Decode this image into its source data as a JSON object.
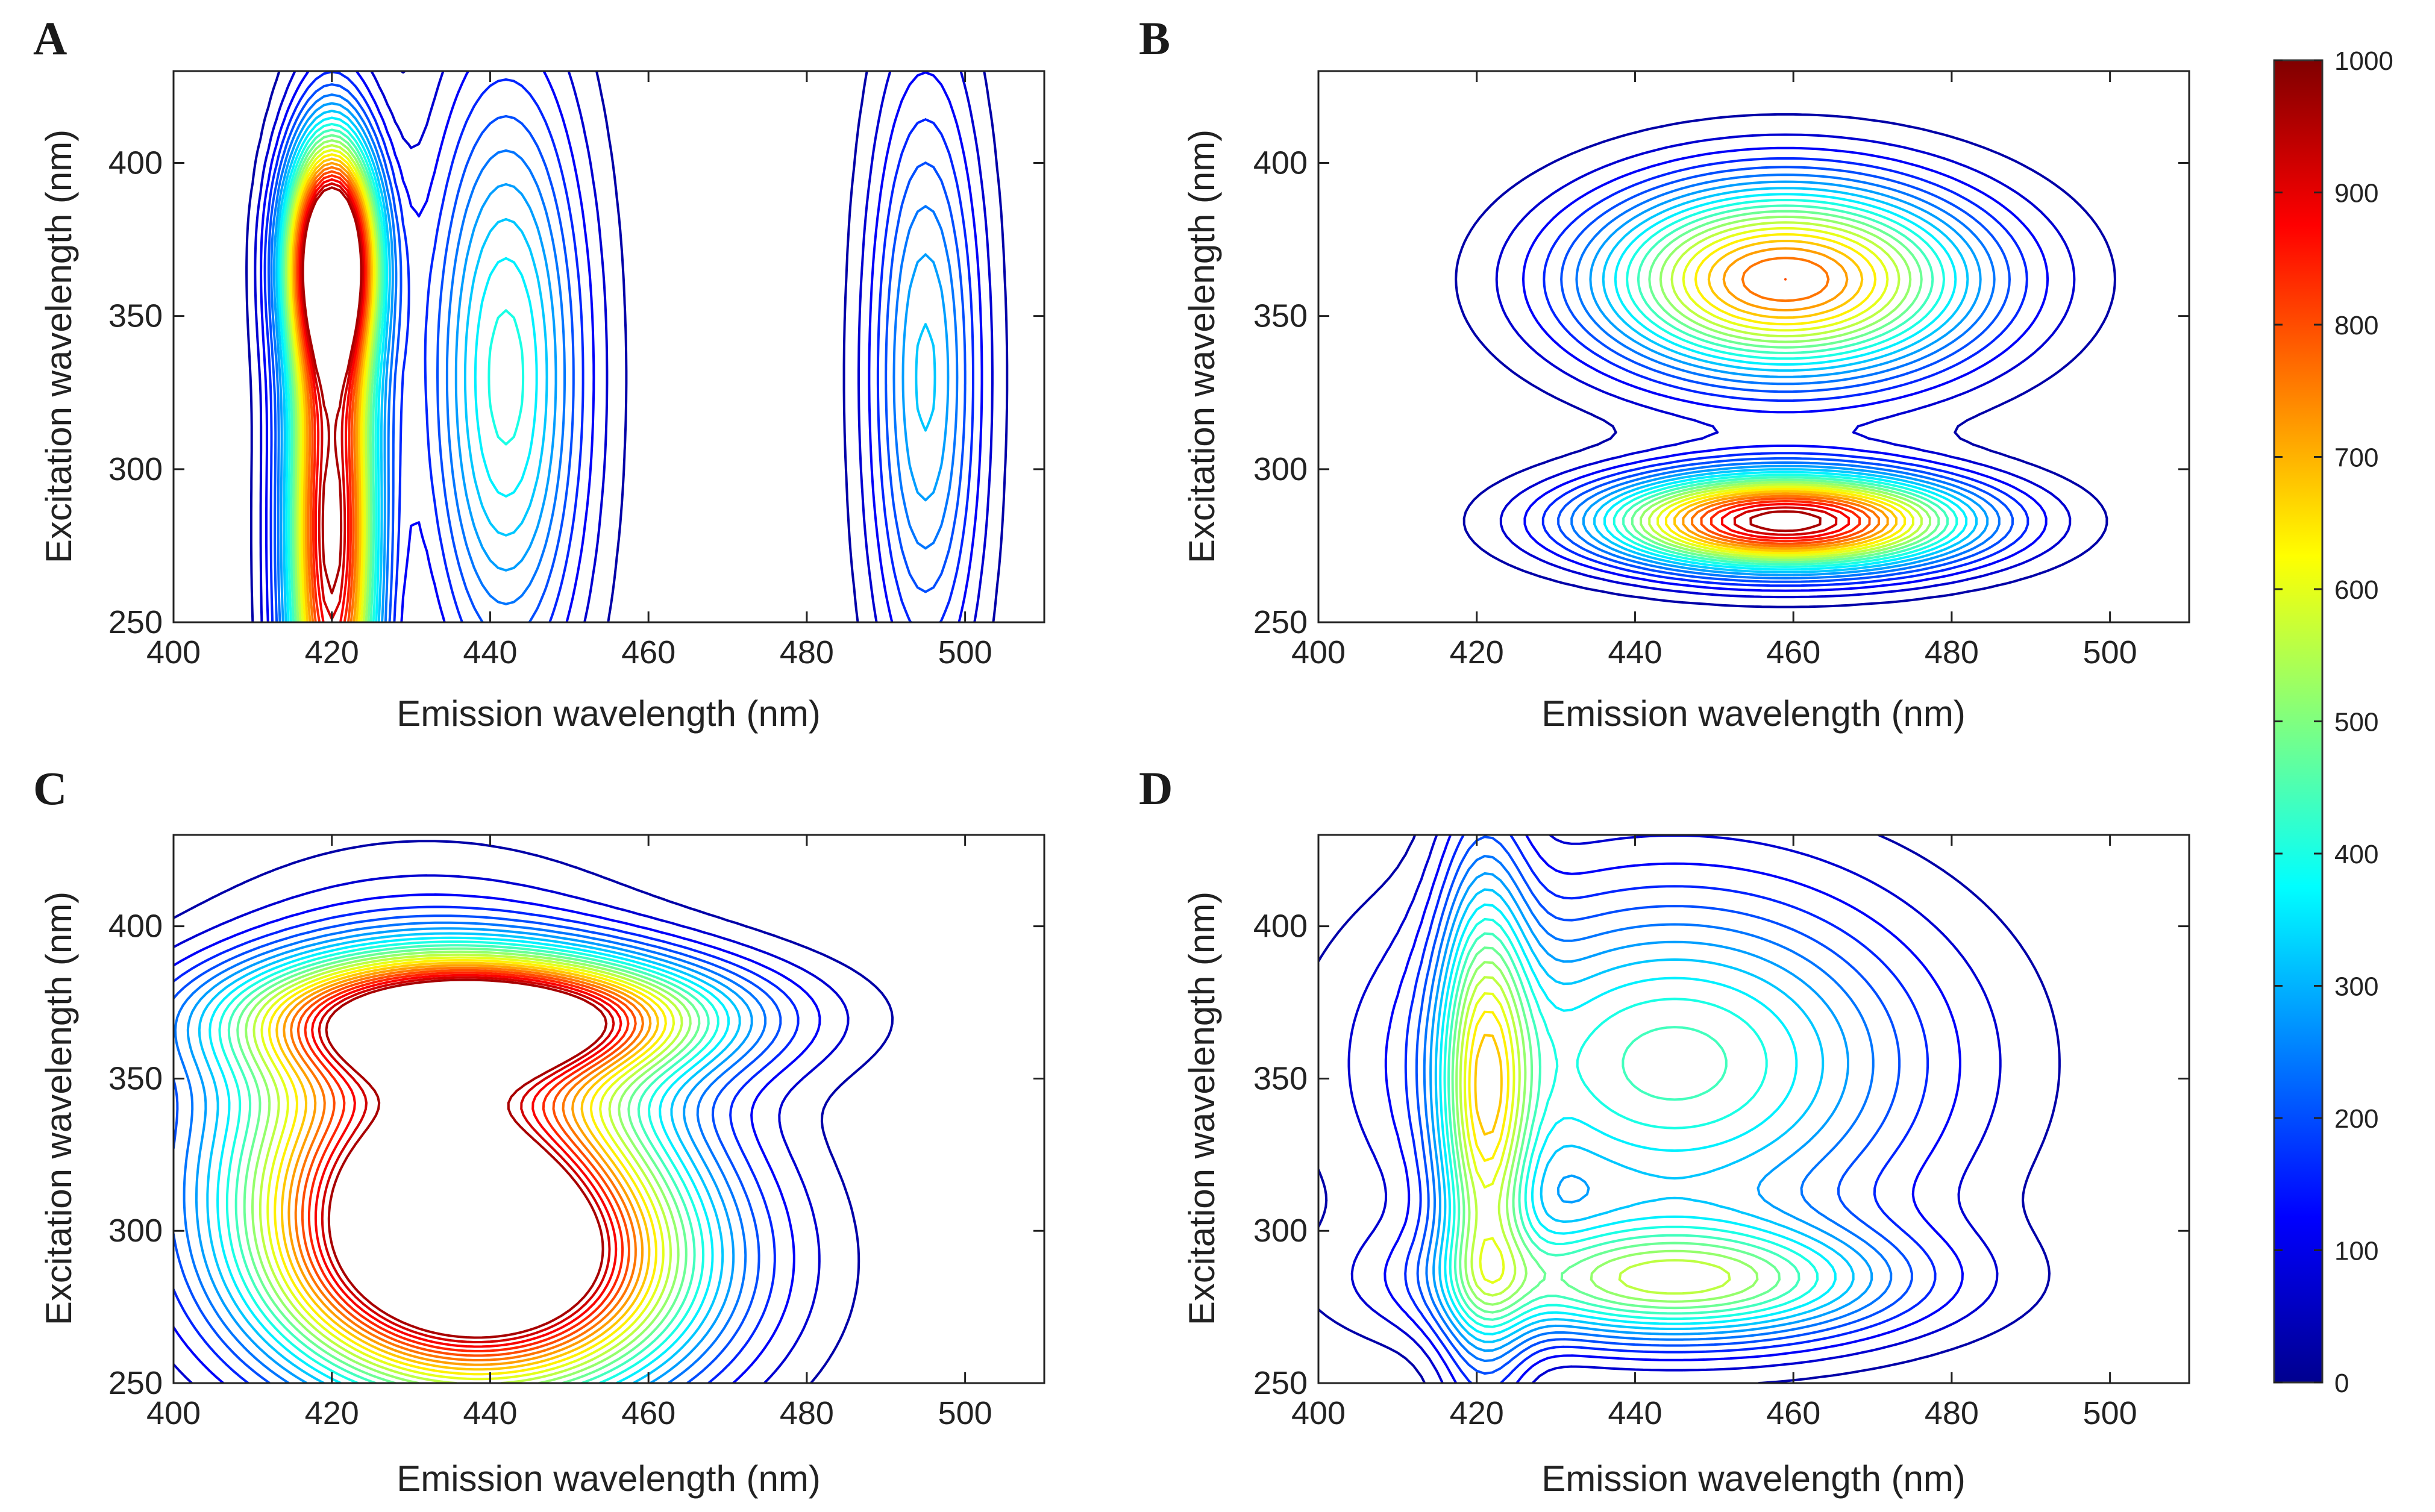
{
  "figure": {
    "colormap": [
      "#00008f",
      "#0000ff",
      "#0080ff",
      "#00ffff",
      "#80ff80",
      "#ffff00",
      "#ff8000",
      "#ff0000",
      "#800000"
    ]
  },
  "chart_data": [
    {
      "type": "contour",
      "panel": "A",
      "xlabel": "Emission wavelength (nm)",
      "ylabel": "Excitation wavelength (nm)",
      "xlim": [
        400,
        510
      ],
      "ylim": [
        250,
        430
      ],
      "xticks": [
        400,
        420,
        440,
        460,
        480,
        500
      ],
      "yticks": [
        250,
        300,
        350,
        400
      ],
      "peaks": [
        {
          "em": 420,
          "ex": 280,
          "value": 1000,
          "sx": 4,
          "sy": 70
        },
        {
          "em": 420,
          "ex": 370,
          "value": 1000,
          "sx": 4,
          "sy": 25
        },
        {
          "em": 442,
          "ex": 330,
          "value": 420,
          "sx": 7,
          "sy": 70
        },
        {
          "em": 495,
          "ex": 330,
          "value": 330,
          "sx": 5,
          "sy": 70
        }
      ]
    },
    {
      "type": "contour",
      "panel": "B",
      "xlabel": "Emission wavelength (nm)",
      "ylabel": "Excitation wavelength (nm)",
      "xlim": [
        400,
        510
      ],
      "ylim": [
        250,
        430
      ],
      "xticks": [
        400,
        420,
        440,
        460,
        480,
        500
      ],
      "yticks": [
        250,
        300,
        350,
        400
      ],
      "peaks": [
        {
          "em": 459,
          "ex": 283,
          "value": 1000,
          "sx": 16,
          "sy": 11
        },
        {
          "em": 459,
          "ex": 362,
          "value": 800,
          "sx": 17,
          "sy": 22
        }
      ]
    },
    {
      "type": "contour",
      "panel": "C",
      "xlabel": "Emission wavelength (nm)",
      "ylabel": "Excitation wavelength (nm)",
      "xlim": [
        400,
        510
      ],
      "ylim": [
        250,
        430
      ],
      "xticks": [
        400,
        420,
        440,
        460,
        480,
        500
      ],
      "yticks": [
        250,
        300,
        350,
        400
      ],
      "peaks": [
        {
          "em": 440,
          "ex": 287,
          "value": 1000,
          "sx": 18,
          "sy": 30
        },
        {
          "em": 440,
          "ex": 370,
          "value": 940,
          "sx": 20,
          "sy": 14
        },
        {
          "em": 432,
          "ex": 330,
          "value": 800,
          "sx": 18,
          "sy": 40
        }
      ]
    },
    {
      "type": "contour",
      "panel": "D",
      "xlabel": "Emission wavelength (nm)",
      "ylabel": "Excitation wavelength (nm)",
      "xlim": [
        400,
        510
      ],
      "ylim": [
        250,
        430
      ],
      "xticks": [
        400,
        420,
        440,
        460,
        480,
        500
      ],
      "yticks": [
        250,
        300,
        350,
        400
      ],
      "peaks": [
        {
          "em": 445,
          "ex": 283,
          "value": 500,
          "sx": 20,
          "sy": 14
        },
        {
          "em": 445,
          "ex": 355,
          "value": 460,
          "sx": 22,
          "sy": 40
        },
        {
          "em": 421,
          "ex": 340,
          "value": 470,
          "sx": 4,
          "sy": 60
        }
      ]
    }
  ],
  "colorbar": {
    "min": 0,
    "max": 1000,
    "ticks": [
      0,
      100,
      200,
      300,
      400,
      500,
      600,
      700,
      800,
      900,
      1000
    ]
  }
}
